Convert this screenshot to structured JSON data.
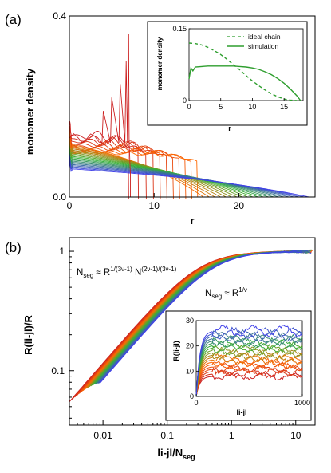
{
  "chart_data": [
    {
      "panel_label": "(a)",
      "type": "line",
      "xlabel": "r",
      "ylabel": "monomer density",
      "xlim": [
        0,
        29
      ],
      "ylim": [
        0,
        0.4
      ],
      "xticks": [
        "0",
        "10",
        "20"
      ],
      "yticks": [
        "0.0",
        "0.4"
      ],
      "color_ramp": [
        "#cc1f1f",
        "#ff6a00",
        "#34b234",
        "#4040e8"
      ],
      "series_count": 32,
      "profiles": {
        "r_end_range": [
          7,
          28.3
        ],
        "wall_height_range": [
          0.135,
          0.05
        ],
        "peak_density": 0.36,
        "peak_r": 7
      },
      "inset": {
        "type": "line",
        "xlabel": "r",
        "ylabel": "monomer density",
        "xlim": [
          0,
          18
        ],
        "ylim": [
          0,
          0.15
        ],
        "xticks": [
          "0",
          "5",
          "10",
          "15"
        ],
        "yticks": [
          "0",
          "0.15"
        ],
        "legend_position": "top-right",
        "series": [
          {
            "name": "ideal chain",
            "style": "dashed",
            "color": "#2e9e2e",
            "x": [
              0,
              1,
              2,
              3,
              4,
              5,
              6,
              7,
              8,
              9,
              10,
              11,
              12,
              13,
              14,
              15,
              16,
              17
            ],
            "y": [
              0.12,
              0.119,
              0.116,
              0.111,
              0.104,
              0.096,
              0.086,
              0.075,
              0.064,
              0.052,
              0.041,
              0.031,
              0.022,
              0.014,
              0.008,
              0.003,
              0.001,
              0.0
            ]
          },
          {
            "name": "simulation",
            "style": "solid",
            "color": "#2e9e2e",
            "x": [
              0,
              0.3,
              0.6,
              1,
              2,
              3,
              4,
              5,
              6,
              7,
              8,
              9,
              10,
              11,
              12,
              13,
              14,
              15,
              16,
              17,
              17.6
            ],
            "y": [
              0.045,
              0.068,
              0.062,
              0.07,
              0.071,
              0.072,
              0.072,
              0.072,
              0.072,
              0.072,
              0.071,
              0.07,
              0.068,
              0.065,
              0.06,
              0.054,
              0.046,
              0.036,
              0.024,
              0.01,
              0.0
            ]
          }
        ]
      }
    },
    {
      "panel_label": "(b)",
      "type": "line",
      "scale": "log-log",
      "xlabel": "|i-j|/N_seg",
      "xlabel_main": "li-jl/N",
      "xlabel_sub": "seg",
      "ylabel": "R(li-jl)/R",
      "xlim": [
        0.003,
        20
      ],
      "ylim": [
        0.035,
        1.3
      ],
      "xticks": [
        "0.01",
        "0.1",
        "1",
        "10"
      ],
      "yticks": [
        "0.1",
        "1"
      ],
      "color_ramp": [
        "#cc1f1f",
        "#ff6a00",
        "#34b234",
        "#4040e8"
      ],
      "series_count": 20,
      "collapse": {
        "x_small": 0.003,
        "y_small_range": [
          0.04,
          0.055
        ],
        "slope": 0.62,
        "plateau": 1.0
      },
      "annotations": [
        {
          "id": "scaling_1",
          "parts": [
            "N",
            "seg",
            " ≈ R",
            "1/(3ν-1)",
            " N",
            "(2ν-1)/(3ν-1)"
          ]
        },
        {
          "id": "scaling_2",
          "parts": [
            "N",
            "seg",
            " ≈ R",
            "1/ν"
          ]
        }
      ],
      "inset": {
        "type": "line",
        "xlabel": "li-jl",
        "ylabel": "R(li-jl)",
        "xlim": [
          0,
          1000
        ],
        "ylim": [
          0,
          30
        ],
        "xticks": [
          "0",
          "1000"
        ],
        "yticks": [
          "0",
          "10",
          "20",
          "30"
        ],
        "series_count": 20,
        "plateau_range": [
          8,
          26
        ]
      }
    }
  ]
}
